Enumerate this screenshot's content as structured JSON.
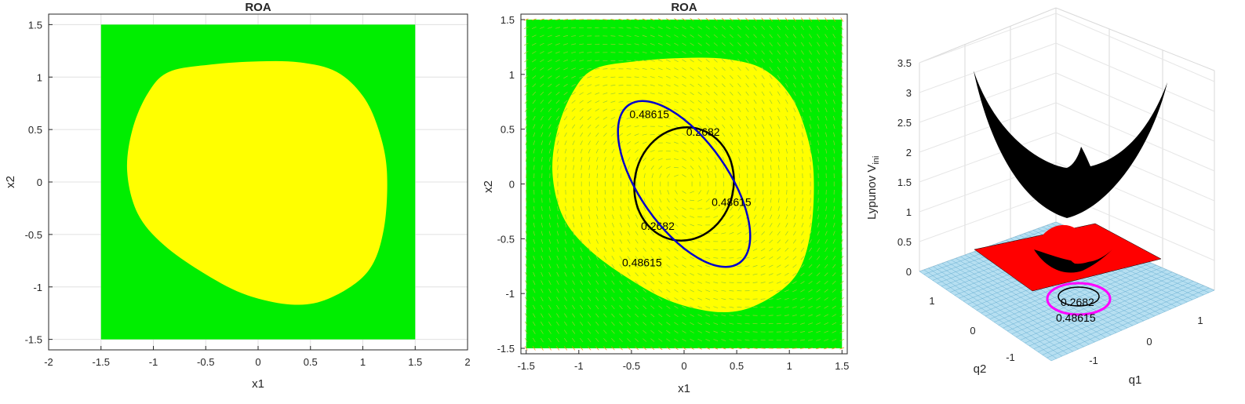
{
  "chart_data": [
    {
      "type": "heatmap",
      "title": "ROA",
      "xlabel": "x1",
      "ylabel": "x2",
      "xlim": [
        -2,
        2
      ],
      "ylim": [
        -1.6,
        1.6
      ],
      "xticks": [
        "-2",
        "-1.5",
        "-1",
        "-0.5",
        "0",
        "0.5",
        "1",
        "1.5",
        "2"
      ],
      "yticks": [
        "-1.5",
        "-1",
        "-0.5",
        "0",
        "0.5",
        "1",
        "1.5"
      ],
      "grid": true,
      "domain": {
        "x": [
          -1.5,
          1.5
        ],
        "y": [
          -1.5,
          1.5
        ],
        "color": "#00ee00"
      },
      "region": {
        "color": "#ffff00",
        "boundary": [
          [
            -0.85,
            1.05
          ],
          [
            -0.45,
            1.12
          ],
          [
            0.0,
            1.15
          ],
          [
            0.4,
            1.14
          ],
          [
            0.75,
            1.05
          ],
          [
            1.0,
            0.82
          ],
          [
            1.15,
            0.5
          ],
          [
            1.23,
            0.1
          ],
          [
            1.2,
            -0.45
          ],
          [
            1.05,
            -0.85
          ],
          [
            0.7,
            -1.1
          ],
          [
            0.35,
            -1.17
          ],
          [
            -0.1,
            -1.08
          ],
          [
            -0.5,
            -0.88
          ],
          [
            -0.9,
            -0.6
          ],
          [
            -1.15,
            -0.3
          ],
          [
            -1.25,
            0.1
          ],
          [
            -1.2,
            0.5
          ],
          [
            -1.05,
            0.85
          ]
        ]
      }
    },
    {
      "type": "heatmap",
      "title": "ROA",
      "xlabel": "x1",
      "ylabel": "x2",
      "xlim": [
        -1.55,
        1.55
      ],
      "ylim": [
        -1.55,
        1.55
      ],
      "xticks": [
        "-1.5",
        "-1",
        "-0.5",
        "0",
        "0.5",
        "1",
        "1.5"
      ],
      "yticks": [
        "-1.5",
        "-1",
        "-0.5",
        "0",
        "0.5",
        "1",
        "1.5"
      ],
      "grid": false,
      "vector_field": true,
      "domain": {
        "x": [
          -1.5,
          1.5
        ],
        "y": [
          -1.5,
          1.5
        ],
        "color": "#00ee00"
      },
      "region": {
        "color": "#ffff00",
        "boundary": [
          [
            -0.85,
            1.05
          ],
          [
            -0.45,
            1.12
          ],
          [
            0.0,
            1.15
          ],
          [
            0.4,
            1.14
          ],
          [
            0.75,
            1.05
          ],
          [
            1.0,
            0.82
          ],
          [
            1.15,
            0.5
          ],
          [
            1.23,
            0.1
          ],
          [
            1.2,
            -0.45
          ],
          [
            1.05,
            -0.85
          ],
          [
            0.7,
            -1.1
          ],
          [
            0.35,
            -1.17
          ],
          [
            -0.1,
            -1.08
          ],
          [
            -0.5,
            -0.88
          ],
          [
            -0.9,
            -0.6
          ],
          [
            -1.15,
            -0.3
          ],
          [
            -1.25,
            0.1
          ],
          [
            -1.2,
            0.5
          ],
          [
            -1.05,
            0.85
          ]
        ]
      },
      "contours": [
        {
          "level": "0.2682",
          "color": "#000000",
          "center": [
            0.0,
            0.0
          ],
          "rx": 0.47,
          "ry": 0.52,
          "rot": 12,
          "labels": [
            {
              "text": "0.2682",
              "x": 0.18,
              "y": 0.44
            },
            {
              "text": "0.2682",
              "x": -0.25,
              "y": -0.42
            }
          ]
        },
        {
          "level": "0.48615",
          "color": "#0000cc",
          "center": [
            0.0,
            0.0
          ],
          "rx": 0.42,
          "ry": 0.88,
          "rot": -35,
          "labels": [
            {
              "text": "0.48615",
              "x": -0.33,
              "y": 0.6
            },
            {
              "text": "0.48615",
              "x": 0.45,
              "y": -0.2
            },
            {
              "text": "0.48615",
              "x": -0.4,
              "y": -0.75
            }
          ]
        }
      ]
    },
    {
      "type": "surface",
      "xlabel": "q1",
      "ylabel": "q2",
      "zlabel": "Lypunov V",
      "zlabel_sub": "ini",
      "zlim": [
        0,
        3.5
      ],
      "zticks": [
        "0",
        "0.5",
        "1",
        "1.5",
        "2",
        "2.5",
        "3",
        "3.5"
      ],
      "q1ticks": [
        "-1",
        "0",
        "1"
      ],
      "q2ticks": [
        "-1",
        "0",
        "1"
      ],
      "surface_color": "#000000",
      "plane_color": "#ff0000",
      "floor_color": "#9fd3ea",
      "contour_labels": [
        "0.2682",
        "0.48615"
      ],
      "contour_color": "#ff00ff"
    }
  ]
}
